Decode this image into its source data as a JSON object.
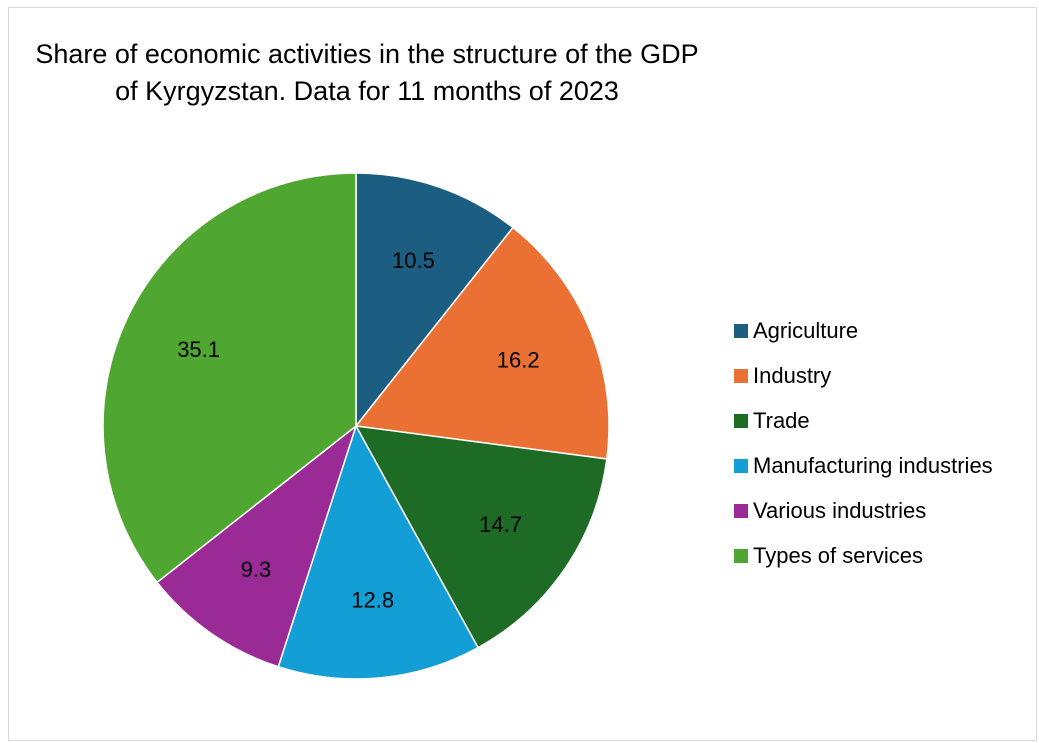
{
  "chart_data": {
    "type": "pie",
    "title_lines": [
      "Share of economic activities in the structure of the GDP",
      "of Kyrgyzstan. Data for 11 months of 2023"
    ],
    "categories": [
      "Agriculture",
      "Industry",
      "Trade",
      "Manufacturing industries",
      "Various industries",
      "Types of services"
    ],
    "values": [
      10.5,
      16.2,
      14.7,
      12.8,
      9.3,
      35.1
    ],
    "colors": [
      "#1b5e82",
      "#ea7033",
      "#1e6b25",
      "#139fd6",
      "#9a2b96",
      "#4fa631"
    ],
    "legend_position": "right"
  }
}
